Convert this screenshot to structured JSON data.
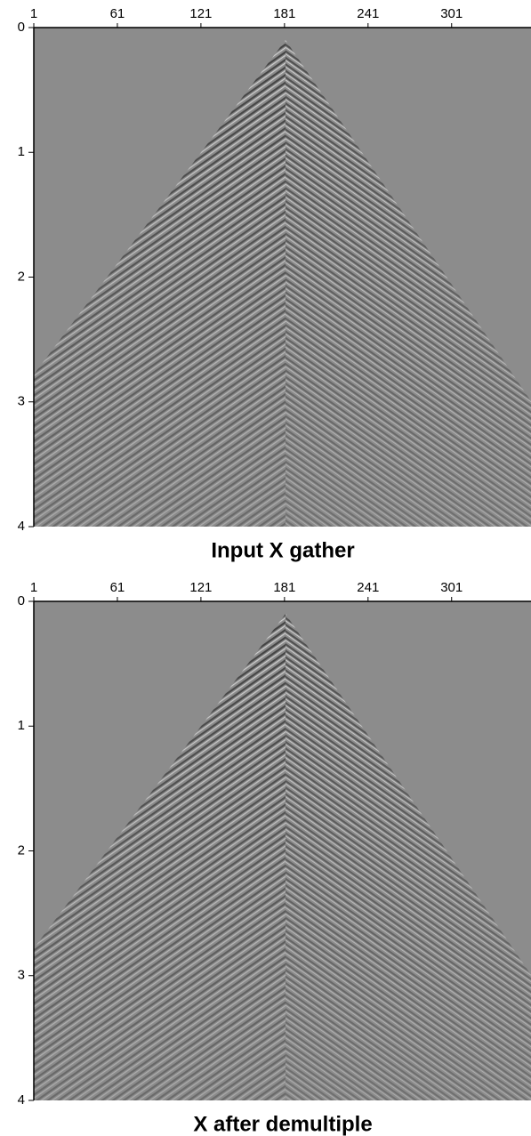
{
  "chart_data": [
    {
      "type": "seismic",
      "title": "Input X gather",
      "xlim": [
        1,
        358
      ],
      "ylim": [
        0,
        4
      ],
      "y_inverted": true,
      "xticks": [
        1,
        61,
        121,
        181,
        241,
        301
      ],
      "yticks": [
        0,
        1,
        2,
        3,
        4
      ]
    },
    {
      "type": "seismic",
      "title": "X after demultiple",
      "xlim": [
        1,
        358
      ],
      "ylim": [
        0,
        4
      ],
      "y_inverted": true,
      "xticks": [
        1,
        61,
        121,
        181,
        241,
        301
      ],
      "yticks": [
        0,
        1,
        2,
        3,
        4
      ]
    }
  ]
}
